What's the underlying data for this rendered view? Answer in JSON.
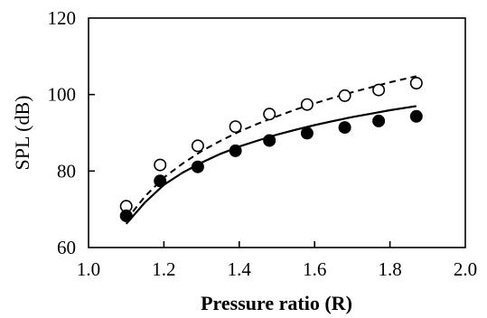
{
  "chart_data": {
    "type": "scatter",
    "title": "",
    "xlabel": "Pressure ratio (R)",
    "ylabel": "SPL (dB)",
    "xlim": [
      1.0,
      2.0
    ],
    "ylim": [
      60,
      120
    ],
    "x_ticks": [
      "1.0",
      "1.2",
      "1.4",
      "1.6",
      "1.8",
      "2.0"
    ],
    "y_ticks": [
      "60",
      "80",
      "100",
      "120"
    ],
    "x_tick_values": [
      1.0,
      1.2,
      1.4,
      1.6,
      1.8,
      2.0
    ],
    "y_tick_values": [
      60,
      80,
      100,
      120
    ],
    "grid": false,
    "legend": "none",
    "series": [
      {
        "marker": "open-circle",
        "x": [
          1.1,
          1.19,
          1.29,
          1.39,
          1.48,
          1.58,
          1.68,
          1.77,
          1.87
        ],
        "y": [
          70.8,
          81.6,
          86.6,
          91.6,
          94.9,
          97.4,
          99.7,
          101.2,
          103.0
        ]
      },
      {
        "marker": "filled-circle",
        "x": [
          1.1,
          1.19,
          1.29,
          1.39,
          1.48,
          1.58,
          1.68,
          1.77,
          1.87
        ],
        "y": [
          68.3,
          77.4,
          81.1,
          85.3,
          88.0,
          89.9,
          91.4,
          93.1,
          94.3
        ]
      },
      {
        "line_style": "dashed",
        "x": [
          1.1,
          1.15,
          1.2,
          1.25,
          1.3,
          1.35,
          1.4,
          1.45,
          1.5,
          1.55,
          1.6,
          1.65,
          1.7,
          1.75,
          1.8,
          1.87
        ],
        "y": [
          67.2,
          73.4,
          78.3,
          82.0,
          85.2,
          87.9,
          90.3,
          92.4,
          94.3,
          96.1,
          97.7,
          99.2,
          100.6,
          101.9,
          103.2,
          104.8
        ]
      },
      {
        "line_style": "solid",
        "x": [
          1.1,
          1.15,
          1.2,
          1.25,
          1.3,
          1.35,
          1.4,
          1.45,
          1.5,
          1.55,
          1.6,
          1.65,
          1.7,
          1.75,
          1.8,
          1.87
        ],
        "y": [
          66.2,
          71.8,
          76.4,
          79.6,
          82.2,
          84.5,
          86.4,
          88.0,
          89.5,
          90.8,
          92.0,
          93.1,
          94.1,
          95.0,
          95.9,
          97.0
        ]
      }
    ]
  }
}
